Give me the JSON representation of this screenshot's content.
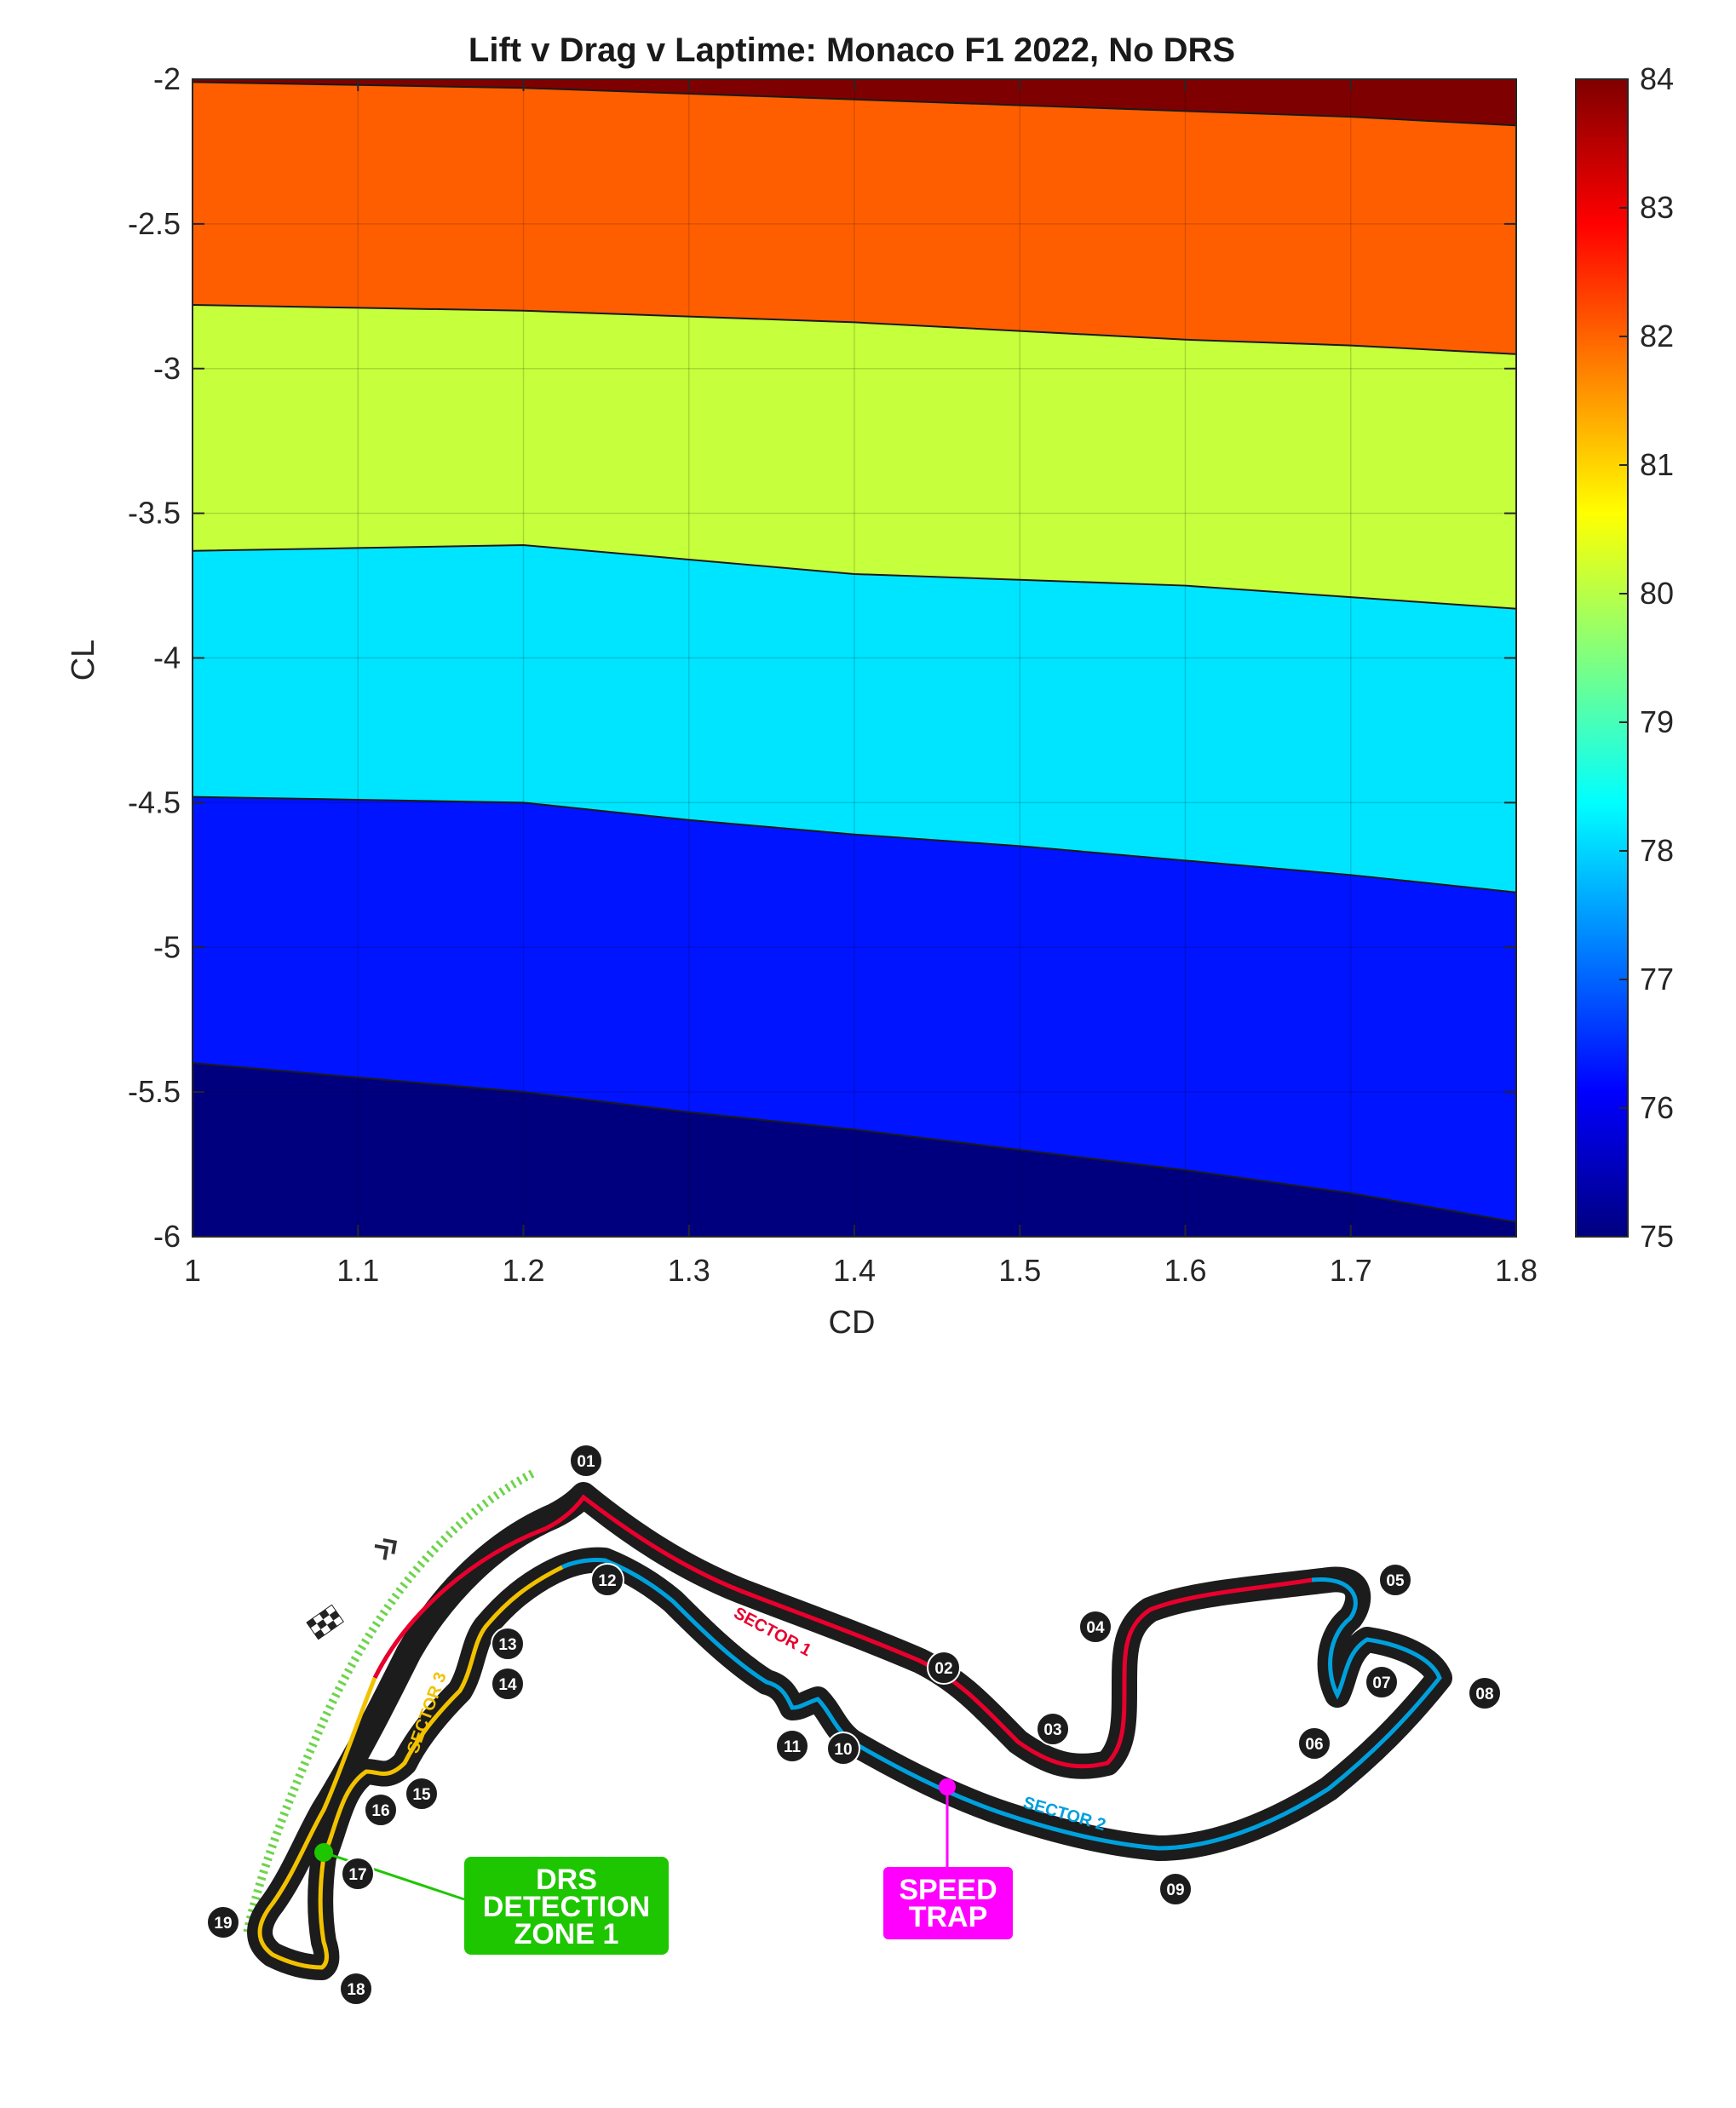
{
  "chart_data": {
    "type": "contourf",
    "title": "Lift v Drag v Laptime: Monaco F1 2022, No DRS",
    "xlabel": "CD",
    "ylabel": "CL",
    "xlim": [
      1,
      1.8
    ],
    "ylim": [
      -6,
      -2
    ],
    "xticks": [
      "1",
      "1.1",
      "1.2",
      "1.3",
      "1.4",
      "1.5",
      "1.6",
      "1.7",
      "1.8"
    ],
    "yticks": [
      "-2",
      "-2.5",
      "-3",
      "-3.5",
      "-4",
      "-4.5",
      "-5",
      "-5.5",
      "-6"
    ],
    "grid": true,
    "colorbar": {
      "min": 75,
      "max": 84,
      "ticks": [
        "84",
        "83",
        "82",
        "81",
        "80",
        "79",
        "78",
        "77",
        "76",
        "75"
      ],
      "colormap": "jet"
    },
    "x": [
      1,
      1.1,
      1.2,
      1.3,
      1.4,
      1.5,
      1.6,
      1.7,
      1.8
    ],
    "bands": [
      {
        "name": "75",
        "color": "#00007f"
      },
      {
        "name": "76",
        "color": "#0014ff"
      },
      {
        "name": "78",
        "color": "#00e5ff"
      },
      {
        "name": "80",
        "color": "#c6ff3c"
      },
      {
        "name": "82",
        "color": "#ff5e00"
      },
      {
        "name": "84",
        "color": "#7f0000"
      }
    ],
    "contours": [
      {
        "level": "75-76",
        "y": [
          -5.4,
          -5.45,
          -5.5,
          -5.57,
          -5.63,
          -5.7,
          -5.77,
          -5.85,
          -5.95
        ]
      },
      {
        "level": "76-78",
        "y": [
          -4.48,
          -4.49,
          -4.5,
          -4.56,
          -4.61,
          -4.65,
          -4.7,
          -4.75,
          -4.81
        ]
      },
      {
        "level": "78-80",
        "y": [
          -3.63,
          -3.62,
          -3.61,
          -3.66,
          -3.71,
          -3.73,
          -3.75,
          -3.79,
          -3.83
        ]
      },
      {
        "level": "80-82",
        "y": [
          -2.78,
          -2.79,
          -2.8,
          -2.82,
          -2.84,
          -2.87,
          -2.9,
          -2.92,
          -2.95
        ]
      },
      {
        "level": "82-84",
        "y": [
          -2.01,
          -2.02,
          -2.03,
          -2.05,
          -2.07,
          -2.09,
          -2.11,
          -2.13,
          -2.16
        ]
      }
    ]
  },
  "track_map": {
    "turns": [
      "01",
      "02",
      "03",
      "04",
      "05",
      "06",
      "07",
      "08",
      "09",
      "10",
      "11",
      "12",
      "13",
      "14",
      "15",
      "16",
      "17",
      "18",
      "19"
    ],
    "sectors": [
      {
        "label": "SECTOR 1",
        "color": "#e8002d"
      },
      {
        "label": "SECTOR 2",
        "color": "#00a0dd"
      },
      {
        "label": "SECTOR 3",
        "color": "#f2c200"
      }
    ],
    "drs_box": {
      "lines": [
        "DRS",
        "DETECTION",
        "ZONE 1"
      ],
      "color": "#1ec600"
    },
    "speed_trap": {
      "lines": [
        "SPEED",
        "TRAP"
      ],
      "color": "#ff00ff"
    },
    "icons": [
      "chequered-flag-icon",
      "direction-chevrons-icon"
    ]
  }
}
